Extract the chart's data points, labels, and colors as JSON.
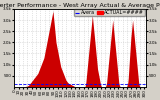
{
  "title": "Solar PV/Inverter Performance - West Array Actual & Average Power Output",
  "bg_color": "#d4d0c8",
  "plot_bg": "#ffffff",
  "bar_color": "#cc0000",
  "avg_line_color": "#0000ff",
  "actual_legend_color": "#ff0000",
  "avg_legend_label": "Avera",
  "actual_legend_label": "ACTUAL=####",
  "grid_color": "#c8c8c8",
  "ylim": [
    0,
    3500
  ],
  "yticks_left": [
    500,
    1000,
    1500,
    2000,
    2500,
    3000,
    3500
  ],
  "ytick_labels_left": [
    "500",
    "1.0k",
    "1.5k",
    "2.0k",
    "2.5k",
    "3.0k",
    "3.5k"
  ],
  "yticks_right": [
    500,
    1000,
    1500,
    2000,
    2500,
    3000,
    3500
  ],
  "ytick_labels_right": [
    "500",
    "1.0k",
    "1.5k",
    "2.0k",
    "2.5k",
    "3.0k",
    "3.5k"
  ],
  "avg_value": 120,
  "title_fontsize": 4.5,
  "tick_fontsize": 3,
  "legend_fontsize": 3.5,
  "data_values": [
    0,
    0,
    0,
    0,
    0,
    0,
    0,
    0,
    0,
    0,
    0,
    0,
    0,
    0,
    0,
    0,
    0,
    0,
    0,
    0,
    5,
    8,
    10,
    12,
    15,
    18,
    20,
    25,
    30,
    35,
    40,
    50,
    60,
    80,
    100,
    120,
    150,
    180,
    200,
    220,
    250,
    280,
    300,
    320,
    350,
    380,
    400,
    420,
    450,
    480,
    500,
    520,
    550,
    580,
    600,
    650,
    700,
    750,
    800,
    850,
    900,
    950,
    1000,
    1050,
    1100,
    1150,
    1200,
    1250,
    1300,
    1400,
    1500,
    1600,
    1700,
    1800,
    1900,
    2000,
    2100,
    2200,
    2300,
    2400,
    2500,
    2600,
    2700,
    2800,
    2900,
    3000,
    3100,
    3200,
    3300,
    3400,
    3200,
    3000,
    2800,
    2600,
    2400,
    2200,
    2000,
    1900,
    1800,
    1700,
    1600,
    1500,
    1400,
    1300,
    1200,
    1100,
    1000,
    900,
    850,
    800,
    750,
    700,
    650,
    600,
    550,
    500,
    450,
    400,
    350,
    300,
    280,
    250,
    220,
    200,
    180,
    160,
    150,
    140,
    130,
    120,
    110,
    100,
    90,
    80,
    70,
    60,
    50,
    40,
    30,
    20,
    10,
    5,
    3,
    2,
    1,
    0,
    0,
    0,
    0,
    0,
    0,
    0,
    0,
    0,
    0,
    0,
    0,
    0,
    0,
    0,
    0,
    0,
    0,
    0,
    100,
    200,
    400,
    600,
    800,
    1000,
    1200,
    1400,
    1600,
    1800,
    2000,
    2200,
    2400,
    2600,
    2800,
    3000,
    3200,
    3000,
    2800,
    2600,
    2400,
    2200,
    2000,
    1800,
    1600,
    1400,
    1200,
    1000,
    800,
    700,
    600,
    500,
    400,
    300,
    200,
    100,
    50,
    20,
    5,
    0,
    0,
    0,
    0,
    0,
    0,
    0,
    0,
    50,
    100,
    200,
    400,
    600,
    800,
    1000,
    1200,
    1400,
    1600,
    1800,
    2000,
    2200,
    2400,
    2600,
    2800,
    3000,
    2800,
    2600,
    2400,
    2200,
    2000,
    1800,
    1600,
    1400,
    1200,
    1000,
    800,
    600,
    400,
    200,
    100,
    50,
    20,
    5,
    0,
    0,
    0,
    0,
    0,
    0,
    0,
    0,
    0,
    0,
    0,
    0,
    0,
    0,
    50,
    100,
    200,
    400,
    700,
    1000,
    1300,
    1600,
    1900,
    2200,
    2400,
    2600,
    2800,
    3000,
    2800,
    2600,
    2400,
    2200,
    2000,
    1800,
    1600,
    1400,
    1200,
    1000,
    800,
    600,
    400,
    200,
    100,
    50,
    10,
    0,
    0,
    0,
    0,
    0,
    0,
    0,
    0,
    0,
    0,
    0,
    0,
    0
  ]
}
